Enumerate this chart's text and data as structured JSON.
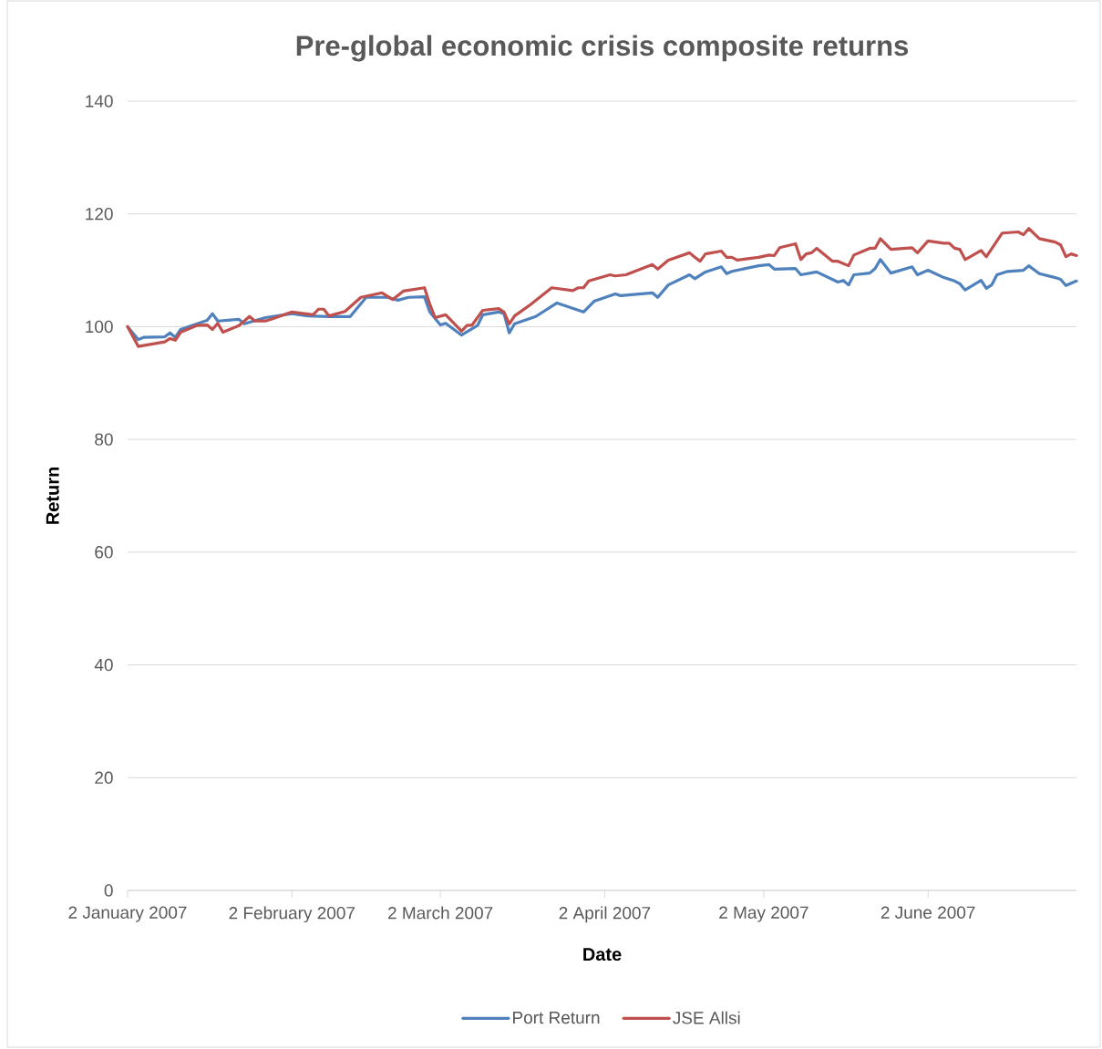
{
  "chart_data": {
    "type": "line",
    "title": "Pre-global economic crisis composite returns",
    "xlabel": "Date",
    "ylabel": "Return",
    "xlim": [
      "2007-01-02",
      "2007-06-30"
    ],
    "ylim": [
      0,
      140
    ],
    "yticks": [
      0,
      20,
      40,
      60,
      80,
      100,
      120,
      140
    ],
    "xticks": [
      {
        "value": "2007-01-02",
        "label": "2 January 2007"
      },
      {
        "value": "2007-02-02",
        "label": "2 February 2007"
      },
      {
        "value": "2007-03-02",
        "label": "2 March 2007"
      },
      {
        "value": "2007-04-02",
        "label": "2 April 2007"
      },
      {
        "value": "2007-05-02",
        "label": "2 May 2007"
      },
      {
        "value": "2007-06-02",
        "label": "2 June 2007"
      }
    ],
    "grid": "y",
    "legend": "bottom",
    "line_style": "solid",
    "series": [
      {
        "name": "Port Return",
        "color": "#4f81bd",
        "x": [
          "2007-01-02",
          "2007-01-04",
          "2007-01-05",
          "2007-01-09",
          "2007-01-10",
          "2007-01-11",
          "2007-01-12",
          "2007-01-17",
          "2007-01-18",
          "2007-01-19",
          "2007-01-23",
          "2007-01-24",
          "2007-01-28",
          "2007-02-02",
          "2007-02-05",
          "2007-02-09",
          "2007-02-13",
          "2007-02-16",
          "2007-02-20",
          "2007-02-22",
          "2007-02-24",
          "2007-02-27",
          "2007-02-28",
          "2007-03-02",
          "2007-03-03",
          "2007-03-06",
          "2007-03-09",
          "2007-03-10",
          "2007-03-13",
          "2007-03-14",
          "2007-03-15",
          "2007-03-16",
          "2007-03-20",
          "2007-03-24",
          "2007-03-29",
          "2007-03-31",
          "2007-04-04",
          "2007-04-05",
          "2007-04-11",
          "2007-04-12",
          "2007-04-14",
          "2007-04-18",
          "2007-04-19",
          "2007-04-21",
          "2007-04-24",
          "2007-04-25",
          "2007-04-26",
          "2007-05-01",
          "2007-05-03",
          "2007-05-04",
          "2007-05-08",
          "2007-05-09",
          "2007-05-12",
          "2007-05-16",
          "2007-05-17",
          "2007-05-18",
          "2007-05-19",
          "2007-05-22",
          "2007-05-23",
          "2007-05-24",
          "2007-05-26",
          "2007-05-30",
          "2007-05-31",
          "2007-06-02",
          "2007-06-05",
          "2007-06-07",
          "2007-06-08",
          "2007-06-09",
          "2007-06-12",
          "2007-06-13",
          "2007-06-14",
          "2007-06-15",
          "2007-06-17",
          "2007-06-20",
          "2007-06-21",
          "2007-06-23",
          "2007-06-26",
          "2007-06-27",
          "2007-06-28",
          "2007-06-30"
        ],
        "values": [
          100.0,
          97.7,
          98.1,
          98.2,
          98.9,
          98.1,
          99.5,
          101.1,
          102.3,
          101.0,
          101.3,
          100.5,
          101.6,
          102.3,
          101.9,
          101.8,
          101.8,
          105.2,
          105.2,
          104.7,
          105.2,
          105.3,
          102.6,
          100.3,
          100.6,
          98.5,
          100.2,
          102.1,
          102.6,
          102.3,
          98.9,
          100.5,
          101.8,
          104.2,
          102.6,
          104.5,
          105.8,
          105.5,
          106.0,
          105.2,
          107.4,
          109.2,
          108.5,
          109.7,
          110.6,
          109.4,
          109.8,
          110.8,
          111.0,
          110.2,
          110.3,
          109.2,
          109.7,
          107.9,
          108.2,
          107.4,
          109.2,
          109.5,
          110.3,
          111.9,
          109.5,
          110.6,
          109.2,
          110.0,
          108.7,
          108.1,
          107.6,
          106.5,
          108.2,
          106.8,
          107.4,
          109.2,
          109.8,
          110.0,
          110.8,
          109.4,
          108.7,
          108.4,
          107.3,
          108.1
        ]
      },
      {
        "name": "JSE Allsi",
        "color": "#c0504d",
        "x": [
          "2007-01-02",
          "2007-01-04",
          "2007-01-09",
          "2007-01-10",
          "2007-01-11",
          "2007-01-12",
          "2007-01-15",
          "2007-01-17",
          "2007-01-18",
          "2007-01-19",
          "2007-01-20",
          "2007-01-23",
          "2007-01-25",
          "2007-01-26",
          "2007-01-28",
          "2007-01-30",
          "2007-02-02",
          "2007-02-06",
          "2007-02-07",
          "2007-02-08",
          "2007-02-09",
          "2007-02-12",
          "2007-02-15",
          "2007-02-19",
          "2007-02-21",
          "2007-02-23",
          "2007-02-27",
          "2007-02-28",
          "2007-03-01",
          "2007-03-03",
          "2007-03-06",
          "2007-03-07",
          "2007-03-08",
          "2007-03-10",
          "2007-03-13",
          "2007-03-14",
          "2007-03-15",
          "2007-03-16",
          "2007-03-19",
          "2007-03-23",
          "2007-03-27",
          "2007-03-28",
          "2007-03-29",
          "2007-03-30",
          "2007-04-03",
          "2007-04-04",
          "2007-04-06",
          "2007-04-11",
          "2007-04-12",
          "2007-04-14",
          "2007-04-18",
          "2007-04-19",
          "2007-04-20",
          "2007-04-21",
          "2007-04-24",
          "2007-04-25",
          "2007-04-26",
          "2007-04-27",
          "2007-05-01",
          "2007-05-03",
          "2007-05-04",
          "2007-05-05",
          "2007-05-08",
          "2007-05-09",
          "2007-05-10",
          "2007-05-11",
          "2007-05-12",
          "2007-05-15",
          "2007-05-16",
          "2007-05-18",
          "2007-05-19",
          "2007-05-22",
          "2007-05-23",
          "2007-05-24",
          "2007-05-26",
          "2007-05-30",
          "2007-05-31",
          "2007-06-02",
          "2007-06-05",
          "2007-06-06",
          "2007-06-07",
          "2007-06-08",
          "2007-06-09",
          "2007-06-12",
          "2007-06-13",
          "2007-06-16",
          "2007-06-19",
          "2007-06-20",
          "2007-06-21",
          "2007-06-23",
          "2007-06-26",
          "2007-06-27",
          "2007-06-28",
          "2007-06-29",
          "2007-06-30"
        ],
        "values": [
          100.0,
          96.5,
          97.3,
          97.9,
          97.6,
          99.0,
          100.2,
          100.3,
          99.5,
          100.6,
          99.0,
          100.2,
          101.8,
          101.0,
          101.0,
          101.6,
          102.6,
          102.1,
          103.1,
          103.1,
          101.9,
          102.7,
          105.2,
          106.0,
          104.8,
          106.3,
          106.9,
          104.0,
          101.6,
          102.1,
          99.2,
          100.2,
          100.3,
          102.9,
          103.2,
          102.6,
          100.5,
          101.9,
          103.9,
          106.9,
          106.4,
          106.9,
          106.9,
          108.1,
          109.2,
          109.0,
          109.2,
          111.0,
          110.2,
          111.8,
          113.1,
          112.3,
          111.6,
          112.9,
          113.4,
          112.3,
          112.3,
          111.8,
          112.3,
          112.7,
          112.6,
          114.0,
          114.7,
          111.9,
          112.9,
          113.1,
          113.9,
          111.6,
          111.6,
          110.8,
          112.7,
          113.9,
          113.9,
          115.6,
          113.7,
          114.0,
          113.1,
          115.2,
          114.8,
          114.8,
          113.9,
          113.7,
          111.9,
          113.5,
          112.4,
          116.6,
          116.8,
          116.3,
          117.4,
          115.6,
          115.0,
          114.5,
          112.4,
          112.9,
          112.6
        ]
      }
    ]
  }
}
